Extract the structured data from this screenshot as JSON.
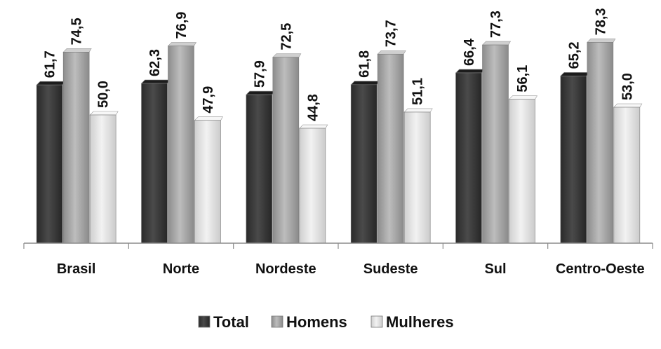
{
  "chart_data": {
    "type": "bar",
    "title": "",
    "xlabel": "",
    "ylabel": "",
    "categories": [
      "Brasil",
      "Norte",
      "Nordeste",
      "Sudeste",
      "Sul",
      "Centro-Oeste"
    ],
    "series": [
      {
        "name": "Total",
        "values": [
          61.7,
          62.3,
          57.9,
          61.8,
          66.4,
          65.2
        ],
        "labels": [
          "61,7",
          "62,3",
          "57,9",
          "61,8",
          "66,4",
          "65,2"
        ],
        "color": "#3d3d3d"
      },
      {
        "name": "Homens",
        "values": [
          74.5,
          76.9,
          72.5,
          73.7,
          77.3,
          78.3
        ],
        "labels": [
          "74,5",
          "76,9",
          "72,5",
          "73,7",
          "77,3",
          "78,3"
        ],
        "color": "#a9a9a9"
      },
      {
        "name": "Mulheres",
        "values": [
          50.0,
          47.9,
          44.8,
          51.1,
          56.1,
          53.0
        ],
        "labels": [
          "50,0",
          "47,9",
          "44,8",
          "51,1",
          "56,1",
          "53,0"
        ],
        "color": "#e2e2e2"
      }
    ],
    "ylim": [
      0,
      100
    ],
    "grid": false,
    "legend_position": "bottom",
    "data_labels": "rotated-vertical"
  }
}
